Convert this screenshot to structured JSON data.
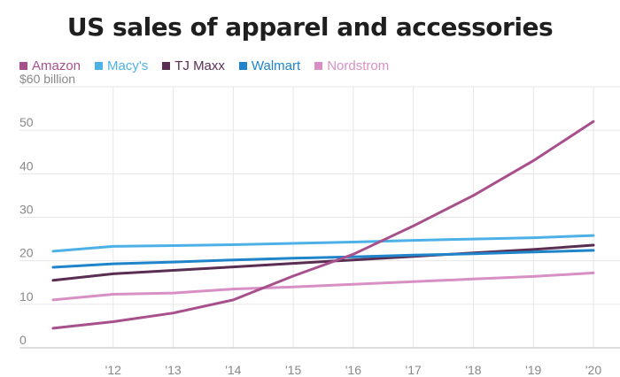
{
  "chart_data": {
    "type": "line",
    "title": "US sales of apparel and accessories",
    "xlabel": "",
    "ylabel": "",
    "x": [
      2011,
      2012,
      2013,
      2014,
      2015,
      2016,
      2017,
      2018,
      2019,
      2020
    ],
    "x_tick_labels": [
      "'12",
      "'13",
      "'14",
      "'15",
      "'16",
      "'17",
      "'18",
      "'19",
      "'20"
    ],
    "y_ticks": [
      0,
      10,
      20,
      30,
      40,
      50
    ],
    "y_top_label": "$60 billion",
    "ylim": [
      0,
      60
    ],
    "series": [
      {
        "name": "Amazon",
        "color": "#a8508c",
        "values": [
          4.5,
          6,
          8,
          11,
          16.5,
          21.5,
          28,
          35,
          43,
          52
        ]
      },
      {
        "name": "Macy's",
        "color": "#4db1e8",
        "values": [
          22.2,
          23.3,
          23.5,
          23.7,
          24.0,
          24.3,
          24.7,
          25.0,
          25.3,
          25.8
        ]
      },
      {
        "name": "TJ Maxx",
        "color": "#5a2d52",
        "values": [
          15.5,
          17,
          17.8,
          18.6,
          19.4,
          20.2,
          21.0,
          21.8,
          22.6,
          23.6
        ]
      },
      {
        "name": "Walmart",
        "color": "#1f84c9",
        "values": [
          18.5,
          19.3,
          19.7,
          20.2,
          20.6,
          20.9,
          21.3,
          21.6,
          22.0,
          22.4
        ]
      },
      {
        "name": "Nordstrom",
        "color": "#d890c4",
        "values": [
          11,
          12.3,
          12.6,
          13.5,
          14.0,
          14.6,
          15.2,
          15.8,
          16.4,
          17.2
        ]
      }
    ]
  }
}
